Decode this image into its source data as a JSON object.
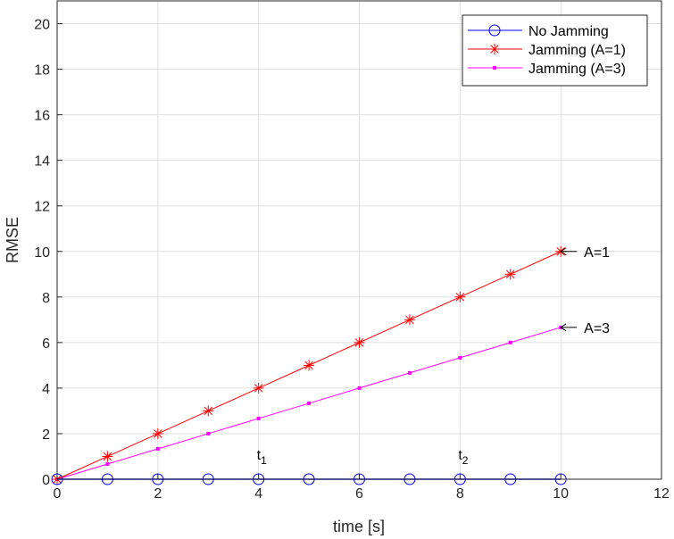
{
  "chart_data": {
    "type": "line",
    "xlabel": "time [s]",
    "ylabel": "RMSE",
    "xlim": [
      0,
      12
    ],
    "ylim": [
      0,
      21
    ],
    "xticks": [
      0,
      2,
      4,
      6,
      8,
      10,
      12
    ],
    "yticks": [
      0,
      2,
      4,
      6,
      8,
      10,
      12,
      14,
      16,
      18,
      20
    ],
    "grid": true,
    "legend_position": "top-right",
    "x": [
      0,
      1,
      2,
      3,
      4,
      5,
      6,
      7,
      8,
      9,
      10
    ],
    "series": [
      {
        "name": "No Jamming",
        "color": "#0000ff",
        "marker": "circle",
        "values": [
          0,
          0,
          0,
          0,
          0,
          0,
          0,
          0,
          0,
          0,
          0
        ]
      },
      {
        "name": "Jamming (A=1)",
        "color": "#ff0000",
        "marker": "asterisk",
        "values": [
          0,
          1,
          2,
          3,
          4,
          5,
          6,
          7,
          8,
          9,
          10
        ]
      },
      {
        "name": "Jamming (A=3)",
        "color": "#ff00ff",
        "marker": "square",
        "values": [
          0,
          0.667,
          1.333,
          2,
          2.667,
          3.333,
          4,
          4.667,
          5.333,
          6,
          6.667
        ]
      }
    ],
    "annotations": [
      {
        "text": "A=1",
        "x": 10,
        "y": 10
      },
      {
        "text": "A=3",
        "x": 10,
        "y": 6.667
      },
      {
        "text": "t",
        "sub": "1",
        "x": 4,
        "y": 0
      },
      {
        "text": "t",
        "sub": "2",
        "x": 8,
        "y": 0
      }
    ]
  }
}
